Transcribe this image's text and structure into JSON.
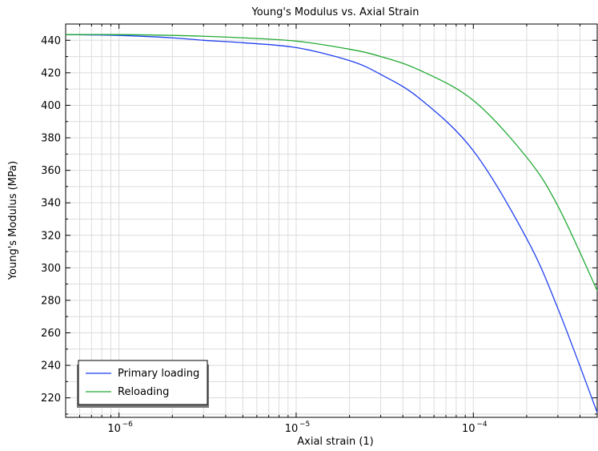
{
  "chart_data": {
    "type": "line",
    "title": "Young's Modulus vs. Axial Strain",
    "xlabel": "Axial strain (1)",
    "ylabel": "Young's Modulus (MPa)",
    "xscale": "log",
    "xlim": [
      5e-07,
      0.0005
    ],
    "ylim": [
      208,
      450
    ],
    "xticks": [
      {
        "value": 1e-06,
        "base": "10",
        "exp": "−6"
      },
      {
        "value": 1e-05,
        "base": "10",
        "exp": "−5"
      },
      {
        "value": 0.0001,
        "base": "10",
        "exp": "−4"
      }
    ],
    "yticks": [
      220,
      240,
      260,
      280,
      300,
      320,
      340,
      360,
      380,
      400,
      420,
      440
    ],
    "grid": true,
    "legend_position": "bottom-left",
    "series": [
      {
        "name": "Primary loading",
        "color": "#1f3ff0",
        "points": [
          [
            5e-07,
            443.5
          ],
          [
            1e-06,
            443
          ],
          [
            2e-06,
            441.5
          ],
          [
            3e-06,
            440
          ],
          [
            5e-06,
            438.5
          ],
          [
            1e-05,
            435.5
          ],
          [
            2e-05,
            427.5
          ],
          [
            3e-05,
            419
          ],
          [
            5e-05,
            404
          ],
          [
            0.0001,
            372
          ],
          [
            0.0002,
            318
          ],
          [
            0.0003,
            275
          ],
          [
            0.0005,
            211
          ]
        ]
      },
      {
        "name": "Reloading",
        "color": "#22aa33",
        "points": [
          [
            5e-07,
            443.5
          ],
          [
            1e-06,
            443.5
          ],
          [
            2e-06,
            443
          ],
          [
            3e-06,
            442.5
          ],
          [
            5e-06,
            441.5
          ],
          [
            1e-05,
            439.5
          ],
          [
            2e-05,
            434.5
          ],
          [
            3e-05,
            430
          ],
          [
            5e-05,
            421.5
          ],
          [
            0.0001,
            403
          ],
          [
            0.0002,
            368
          ],
          [
            0.0003,
            338
          ],
          [
            0.0005,
            286
          ]
        ]
      }
    ]
  }
}
